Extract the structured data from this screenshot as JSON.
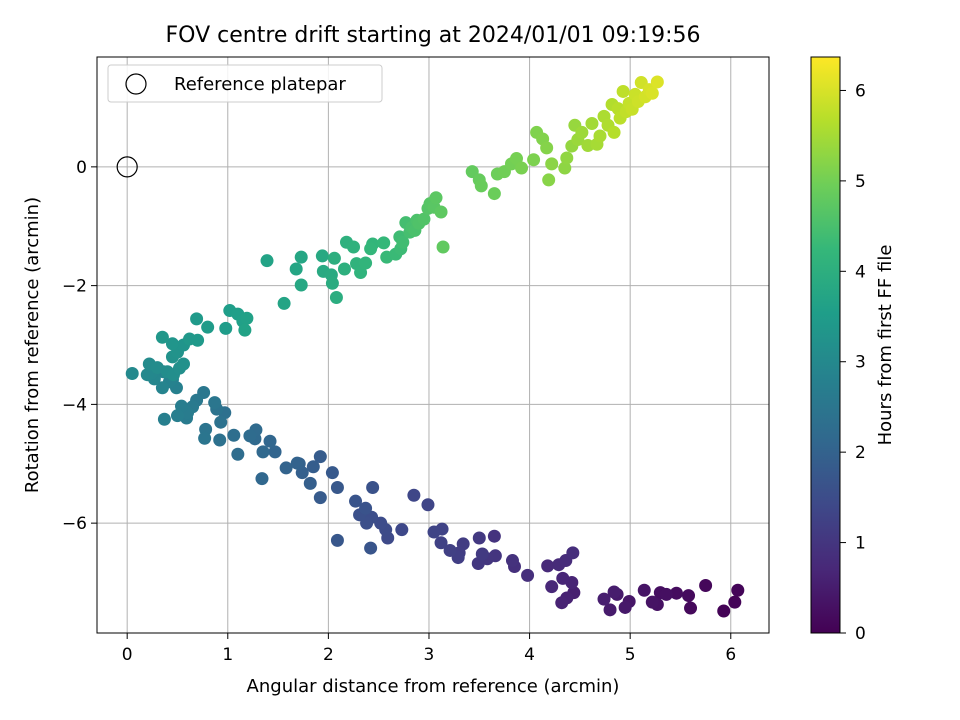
{
  "chart_data": {
    "type": "scatter",
    "title": "FOV centre drift starting at 2024/01/01 09:19:56",
    "xlabel": "Angular distance from reference (arcmin)",
    "ylabel": "Rotation from reference (arcmin)",
    "xlim": [
      -0.3,
      6.38
    ],
    "ylim": [
      -7.85,
      1.85
    ],
    "x_ticks": [
      0,
      1,
      2,
      3,
      4,
      5,
      6
    ],
    "y_ticks": [
      0,
      -2,
      -4,
      -6
    ],
    "x_tick_labels": [
      "0",
      "1",
      "2",
      "3",
      "4",
      "5",
      "6"
    ],
    "y_tick_labels": [
      "0",
      "−2",
      "−4",
      "−6"
    ],
    "grid": true,
    "legend": {
      "position": "top-left",
      "entries": [
        "Reference platepar"
      ]
    },
    "reference_point": {
      "name": "Reference platepar",
      "x": 0,
      "y": 0
    },
    "colorbar": {
      "label": "Hours from first FF file",
      "colormap": "viridis",
      "range": [
        0,
        6.37
      ],
      "ticks": [
        0,
        1,
        2,
        3,
        4,
        5,
        6
      ],
      "tick_labels": [
        "0",
        "1",
        "2",
        "3",
        "4",
        "5",
        "6"
      ]
    },
    "colors": {
      "viridis": [
        "#440154",
        "#482878",
        "#3e4989",
        "#31688e",
        "#26828e",
        "#1f9e89",
        "#35b779",
        "#6ece58",
        "#b5de2b",
        "#fde725"
      ],
      "grid": "#b0b0b0",
      "legend_border": "#cccccc"
    },
    "series": [
      {
        "points": [
          [
            5.93,
            -7.48,
            0.03
          ],
          [
            6.04,
            -7.33,
            0.05
          ],
          [
            6.07,
            -7.13,
            0.08
          ],
          [
            5.75,
            -7.05,
            0.11
          ],
          [
            5.6,
            -7.43,
            0.14
          ],
          [
            5.58,
            -7.22,
            0.17
          ],
          [
            5.46,
            -7.18,
            0.2
          ],
          [
            5.3,
            -7.17,
            0.23
          ],
          [
            5.36,
            -7.2,
            0.26
          ],
          [
            5.27,
            -7.37,
            0.29
          ],
          [
            5.22,
            -7.33,
            0.32
          ],
          [
            5.14,
            -7.13,
            0.35
          ],
          [
            4.99,
            -7.32,
            0.38
          ],
          [
            4.95,
            -7.42,
            0.41
          ],
          [
            4.87,
            -7.2,
            0.44
          ],
          [
            4.8,
            -7.46,
            0.47
          ],
          [
            4.84,
            -7.16,
            0.5
          ],
          [
            4.74,
            -7.28,
            0.53
          ],
          [
            4.44,
            -7.17,
            0.56
          ],
          [
            4.37,
            -7.26,
            0.59
          ],
          [
            4.32,
            -7.34,
            0.62
          ],
          [
            4.42,
            -7.0,
            0.65
          ],
          [
            4.33,
            -6.93,
            0.68
          ],
          [
            4.22,
            -7.07,
            0.71
          ],
          [
            4.18,
            -6.72,
            0.74
          ],
          [
            4.29,
            -6.7,
            0.77
          ],
          [
            4.36,
            -6.63,
            0.8
          ],
          [
            4.43,
            -6.5,
            0.83
          ],
          [
            3.98,
            -6.88,
            0.86
          ],
          [
            3.85,
            -6.73,
            0.89
          ],
          [
            3.83,
            -6.63,
            0.92
          ],
          [
            3.65,
            -6.22,
            0.95
          ],
          [
            3.66,
            -6.55,
            0.98
          ],
          [
            3.58,
            -6.6,
            1.01
          ],
          [
            3.49,
            -6.68,
            1.04
          ],
          [
            3.5,
            -6.25,
            1.07
          ],
          [
            3.53,
            -6.52,
            1.1
          ],
          [
            3.34,
            -6.35,
            1.13
          ],
          [
            3.3,
            -6.5,
            1.16
          ],
          [
            3.29,
            -6.58,
            1.19
          ],
          [
            3.21,
            -6.46,
            1.22
          ],
          [
            3.12,
            -6.33,
            1.25
          ],
          [
            3.13,
            -6.1,
            1.28
          ],
          [
            3.05,
            -6.15,
            1.31
          ],
          [
            2.99,
            -5.69,
            1.34
          ],
          [
            2.85,
            -5.53,
            1.37
          ],
          [
            2.73,
            -6.11,
            1.4
          ],
          [
            2.59,
            -6.25,
            1.43
          ],
          [
            2.57,
            -6.11,
            1.46
          ],
          [
            2.52,
            -6.0,
            1.49
          ],
          [
            2.43,
            -5.9,
            1.52
          ],
          [
            2.38,
            -6.0,
            1.55
          ],
          [
            2.31,
            -5.86,
            1.58
          ],
          [
            2.44,
            -5.4,
            1.61
          ],
          [
            2.37,
            -5.75,
            1.64
          ],
          [
            2.27,
            -5.63,
            1.67
          ],
          [
            2.42,
            -6.42,
            1.7
          ],
          [
            2.09,
            -6.29,
            1.73
          ],
          [
            2.09,
            -5.4,
            1.76
          ],
          [
            2.04,
            -5.15,
            1.79
          ],
          [
            1.92,
            -5.57,
            1.82
          ],
          [
            1.92,
            -4.88,
            1.85
          ],
          [
            1.85,
            -5.05,
            1.88
          ],
          [
            1.82,
            -5.33,
            1.91
          ],
          [
            1.74,
            -5.15,
            1.94
          ],
          [
            1.71,
            -5.0,
            1.97
          ],
          [
            1.69,
            -4.99,
            2.0
          ],
          [
            1.58,
            -5.07,
            2.03
          ],
          [
            1.47,
            -4.8,
            2.06
          ],
          [
            1.42,
            -4.62,
            2.09
          ],
          [
            1.34,
            -5.25,
            2.12
          ],
          [
            1.35,
            -4.8,
            2.15
          ],
          [
            1.27,
            -4.58,
            2.18
          ],
          [
            1.28,
            -4.43,
            2.21
          ],
          [
            1.22,
            -4.53,
            2.24
          ],
          [
            1.1,
            -4.84,
            2.27
          ],
          [
            1.06,
            -4.52,
            2.3
          ],
          [
            0.97,
            -4.14,
            2.33
          ],
          [
            0.92,
            -4.6,
            2.36
          ],
          [
            0.93,
            -4.3,
            2.39
          ],
          [
            0.89,
            -4.08,
            2.42
          ],
          [
            0.78,
            -4.42,
            2.45
          ],
          [
            0.77,
            -4.57,
            2.48
          ],
          [
            0.87,
            -3.97,
            2.51
          ],
          [
            0.76,
            -3.8,
            2.54
          ],
          [
            0.69,
            -3.93,
            2.57
          ],
          [
            0.65,
            -4.04,
            2.6
          ],
          [
            0.59,
            -4.23,
            2.63
          ],
          [
            0.6,
            -4.14,
            2.66
          ],
          [
            0.54,
            -4.03,
            2.69
          ],
          [
            0.5,
            -4.19,
            2.72
          ],
          [
            0.37,
            -4.25,
            2.75
          ],
          [
            0.49,
            -3.72,
            2.78
          ],
          [
            0.45,
            -3.58,
            2.81
          ],
          [
            0.42,
            -3.62,
            2.84
          ],
          [
            0.35,
            -3.72,
            2.87
          ],
          [
            0.36,
            -3.45,
            2.9
          ],
          [
            0.27,
            -3.57,
            2.93
          ],
          [
            0.24,
            -3.48,
            2.96
          ],
          [
            0.2,
            -3.5,
            2.99
          ],
          [
            0.05,
            -3.48,
            3.02
          ],
          [
            0.22,
            -3.32,
            3.05
          ],
          [
            0.3,
            -3.38,
            3.08
          ],
          [
            0.4,
            -3.45,
            3.11
          ],
          [
            0.46,
            -3.5,
            3.14
          ],
          [
            0.52,
            -3.39,
            3.17
          ],
          [
            0.56,
            -3.32,
            3.2
          ],
          [
            0.45,
            -3.2,
            3.23
          ],
          [
            0.5,
            -3.12,
            3.26
          ],
          [
            0.56,
            -3.0,
            3.29
          ],
          [
            0.45,
            -2.98,
            3.32
          ],
          [
            0.35,
            -2.87,
            3.35
          ],
          [
            0.62,
            -2.9,
            3.38
          ],
          [
            0.7,
            -2.92,
            3.41
          ],
          [
            0.69,
            -2.56,
            3.44
          ],
          [
            0.8,
            -2.7,
            3.47
          ],
          [
            0.98,
            -2.72,
            3.5
          ],
          [
            1.02,
            -2.42,
            3.53
          ],
          [
            1.1,
            -2.48,
            3.56
          ],
          [
            1.15,
            -2.6,
            3.59
          ],
          [
            1.19,
            -2.55,
            3.62
          ],
          [
            1.17,
            -2.75,
            3.65
          ],
          [
            1.39,
            -1.58,
            3.68
          ],
          [
            1.56,
            -2.3,
            3.71
          ],
          [
            1.68,
            -1.72,
            3.74
          ],
          [
            1.73,
            -1.52,
            3.77
          ],
          [
            1.73,
            -1.99,
            3.8
          ],
          [
            1.94,
            -1.5,
            3.83
          ],
          [
            1.95,
            -1.76,
            3.86
          ],
          [
            2.03,
            -1.82,
            3.89
          ],
          [
            2.04,
            -1.96,
            3.92
          ],
          [
            2.08,
            -2.2,
            3.95
          ],
          [
            2.06,
            -1.54,
            3.98
          ],
          [
            2.16,
            -1.72,
            4.01
          ],
          [
            2.18,
            -1.27,
            4.04
          ],
          [
            2.25,
            -1.35,
            4.07
          ],
          [
            2.28,
            -1.63,
            4.1
          ],
          [
            2.32,
            -1.78,
            4.13
          ],
          [
            2.37,
            -1.62,
            4.16
          ],
          [
            2.44,
            -1.3,
            4.19
          ],
          [
            2.42,
            -1.38,
            4.22
          ],
          [
            2.55,
            -1.28,
            4.25
          ],
          [
            2.58,
            -1.52,
            4.28
          ],
          [
            2.67,
            -1.47,
            4.31
          ],
          [
            2.72,
            -1.38,
            4.34
          ],
          [
            2.71,
            -1.18,
            4.37
          ],
          [
            2.74,
            -1.27,
            4.4
          ],
          [
            2.77,
            -0.94,
            4.43
          ],
          [
            2.81,
            -1.1,
            4.46
          ],
          [
            2.83,
            -1.02,
            4.49
          ],
          [
            2.86,
            -1.07,
            4.52
          ],
          [
            2.88,
            -0.9,
            4.55
          ],
          [
            2.9,
            -0.95,
            4.58
          ],
          [
            2.95,
            -0.88,
            4.61
          ],
          [
            2.99,
            -0.7,
            4.64
          ],
          [
            3.01,
            -0.62,
            4.67
          ],
          [
            3.05,
            -0.68,
            4.7
          ],
          [
            3.07,
            -0.52,
            4.73
          ],
          [
            3.12,
            -0.76,
            4.76
          ],
          [
            3.14,
            -1.35,
            4.79
          ],
          [
            3.43,
            -0.08,
            4.82
          ],
          [
            3.5,
            -0.22,
            4.85
          ],
          [
            3.52,
            -0.32,
            4.88
          ],
          [
            3.65,
            -0.45,
            4.91
          ],
          [
            3.68,
            -0.12,
            4.94
          ],
          [
            3.75,
            -0.08,
            4.97
          ],
          [
            3.82,
            0.05,
            5.0
          ],
          [
            3.87,
            0.14,
            5.03
          ],
          [
            3.92,
            -0.02,
            5.06
          ],
          [
            4.04,
            0.12,
            5.09
          ],
          [
            4.07,
            0.58,
            5.12
          ],
          [
            4.13,
            0.47,
            5.15
          ],
          [
            4.17,
            0.32,
            5.18
          ],
          [
            4.19,
            -0.22,
            5.21
          ],
          [
            4.22,
            0.05,
            5.24
          ],
          [
            4.35,
            -0.02,
            5.27
          ],
          [
            4.37,
            0.15,
            5.3
          ],
          [
            4.42,
            0.35,
            5.33
          ],
          [
            4.45,
            0.7,
            5.36
          ],
          [
            4.48,
            0.46,
            5.39
          ],
          [
            4.52,
            0.58,
            5.42
          ],
          [
            4.58,
            0.36,
            5.45
          ],
          [
            4.62,
            0.73,
            5.48
          ],
          [
            4.67,
            0.38,
            5.51
          ],
          [
            4.7,
            0.52,
            5.54
          ],
          [
            4.74,
            0.85,
            5.57
          ],
          [
            4.78,
            0.7,
            5.6
          ],
          [
            4.82,
            1.05,
            5.63
          ],
          [
            4.84,
            0.58,
            5.66
          ],
          [
            4.88,
            0.98,
            5.69
          ],
          [
            4.9,
            0.82,
            5.72
          ],
          [
            4.93,
            1.27,
            5.75
          ],
          [
            4.96,
            0.93,
            5.78
          ],
          [
            4.99,
            1.07,
            5.81
          ],
          [
            5.02,
            0.97,
            5.84
          ],
          [
            5.05,
            1.22,
            5.87
          ],
          [
            5.08,
            1.1,
            5.9
          ],
          [
            5.11,
            1.42,
            5.93
          ],
          [
            5.15,
            1.18,
            5.96
          ],
          [
            5.19,
            1.3,
            5.99
          ],
          [
            5.22,
            1.24,
            6.02
          ],
          [
            5.27,
            1.43,
            6.05
          ]
        ]
      }
    ]
  }
}
